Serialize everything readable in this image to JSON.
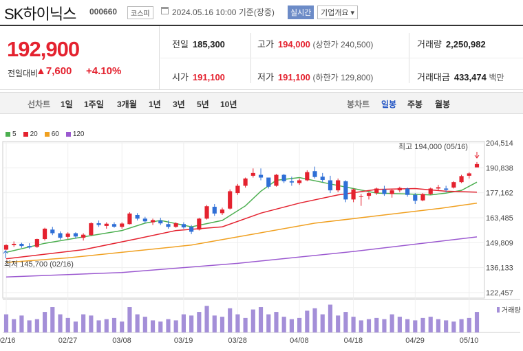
{
  "header": {
    "company": "SK하이닉스",
    "code": "000660",
    "market": "코스피",
    "datetime": "2024.05.16 10:00  기준(장중)",
    "realtime": "실시간",
    "overview": "기업개요 ▾"
  },
  "summary": {
    "price": "192,900",
    "change_label": "전일대비",
    "change": "▲7,600",
    "change_pct": "+4.10%",
    "prev_close_label": "전일",
    "prev_close": "185,300",
    "high_label": "고가",
    "high": "194,000",
    "upper_limit": "(상한가 240,500)",
    "volume_label": "거래량",
    "volume": "2,250,982",
    "open_label": "시가",
    "open": "191,100",
    "low_label": "저가",
    "low": "191,100",
    "lower_limit": "(하한가 129,800)",
    "amount_label": "거래대금",
    "amount": "433,474",
    "amount_unit": "백만"
  },
  "tabs": {
    "line_chart": "선차트",
    "d1": "1일",
    "w1": "1주일",
    "m3": "3개월",
    "y1": "1년",
    "y3": "3년",
    "y5": "5년",
    "y10": "10년",
    "candle_chart": "봉차트",
    "daily": "일봉",
    "weekly": "주봉",
    "monthly": "월봉"
  },
  "chart_data": {
    "type": "candlestick",
    "legend": [
      {
        "name": "5",
        "color": "#4caf50"
      },
      {
        "name": "20",
        "color": "#e4222f"
      },
      {
        "name": "60",
        "color": "#f0a020"
      },
      {
        "name": "120",
        "color": "#9b59d0"
      }
    ],
    "y_ticks": [
      "204,514",
      "190,838",
      "177,162",
      "163,485",
      "149,809",
      "136,133",
      "122,457"
    ],
    "x_ticks": [
      "02/16",
      "02/27",
      "03/08",
      "03/19",
      "03/28",
      "04/08",
      "04/18",
      "04/29",
      "05/10"
    ],
    "max_annotation": "최고 194,000 (05/16)",
    "min_annotation": "최저 145,700 (02/16)",
    "volume_label": "거래량",
    "ylim": [
      122457,
      204514
    ],
    "candles": [
      [
        146000,
        149000,
        145700,
        148500
      ],
      [
        148500,
        150500,
        147500,
        149200
      ],
      [
        149200,
        149800,
        147000,
        148000
      ],
      [
        148000,
        149500,
        146500,
        147200
      ],
      [
        147500,
        152000,
        147000,
        151800
      ],
      [
        151800,
        158000,
        151000,
        157500
      ],
      [
        157000,
        158500,
        154000,
        155000
      ],
      [
        155000,
        156000,
        151500,
        152500
      ],
      [
        153000,
        155500,
        151800,
        154800
      ],
      [
        155000,
        155500,
        152000,
        153200
      ],
      [
        152500,
        155000,
        151000,
        154200
      ],
      [
        154000,
        161000,
        153500,
        160500
      ],
      [
        160500,
        162000,
        158500,
        159500
      ],
      [
        159000,
        161000,
        157500,
        160200
      ],
      [
        160000,
        161000,
        158000,
        158600
      ],
      [
        158500,
        161000,
        157500,
        160300
      ],
      [
        160000,
        166500,
        159800,
        165800
      ],
      [
        165000,
        166000,
        162000,
        163000
      ],
      [
        163000,
        164000,
        160500,
        161500
      ],
      [
        161000,
        163000,
        159500,
        162200
      ],
      [
        162000,
        163500,
        159500,
        160400
      ],
      [
        160000,
        162000,
        157500,
        158500
      ],
      [
        158500,
        161000,
        158000,
        160500
      ],
      [
        160000,
        161000,
        157500,
        158200
      ],
      [
        158500,
        159500,
        154500,
        155800
      ],
      [
        157000,
        163500,
        156500,
        163000
      ],
      [
        163000,
        170500,
        162500,
        169800
      ],
      [
        169500,
        171000,
        164500,
        165800
      ],
      [
        166000,
        169000,
        165000,
        168000
      ],
      [
        168500,
        179000,
        168000,
        178000
      ],
      [
        177000,
        182000,
        176000,
        181000
      ],
      [
        181000,
        185500,
        180000,
        185000
      ],
      [
        186500,
        190500,
        185500,
        188000
      ],
      [
        187000,
        190500,
        184000,
        185500
      ],
      [
        185500,
        185000,
        179500,
        180500
      ],
      [
        181000,
        187500,
        180500,
        187000
      ],
      [
        187000,
        187500,
        182500,
        183500
      ],
      [
        183500,
        186000,
        181000,
        182800
      ],
      [
        182500,
        185000,
        181500,
        184000
      ],
      [
        184000,
        189500,
        183500,
        188500
      ],
      [
        189000,
        191500,
        185000,
        185800
      ],
      [
        186000,
        188000,
        183000,
        184200
      ],
      [
        184000,
        186500,
        177000,
        178500
      ],
      [
        178500,
        185000,
        177500,
        184000
      ],
      [
        183500,
        184000,
        172000,
        173500
      ],
      [
        173500,
        179500,
        172000,
        179000
      ],
      [
        175000,
        176500,
        170000,
        175200
      ],
      [
        175500,
        177500,
        173500,
        177000
      ],
      [
        177000,
        180000,
        176000,
        179500
      ],
      [
        179000,
        181000,
        175500,
        176500
      ],
      [
        176500,
        179500,
        174500,
        178500
      ],
      [
        178500,
        180500,
        177500,
        179800
      ],
      [
        179500,
        180000,
        175000,
        176000
      ],
      [
        176000,
        177000,
        171000,
        172800
      ],
      [
        173000,
        177000,
        172500,
        176500
      ],
      [
        176500,
        180000,
        176000,
        179500
      ],
      [
        179500,
        181500,
        178500,
        180200
      ],
      [
        179500,
        181000,
        177500,
        178800
      ],
      [
        180000,
        183500,
        179500,
        183000
      ],
      [
        183000,
        187000,
        182500,
        186300
      ],
      [
        186500,
        188500,
        185000,
        187800
      ],
      [
        191100,
        194000,
        191100,
        192900
      ]
    ],
    "ma5": [
      [
        0,
        144500
      ],
      [
        5,
        149500
      ],
      [
        10,
        153000
      ],
      [
        15,
        156500
      ],
      [
        18,
        160500
      ],
      [
        20,
        162000
      ],
      [
        24,
        158500
      ],
      [
        28,
        162000
      ],
      [
        31,
        170000
      ],
      [
        33,
        178000
      ],
      [
        35,
        184000
      ],
      [
        38,
        185500
      ],
      [
        42,
        182000
      ],
      [
        45,
        179500
      ],
      [
        48,
        177000
      ],
      [
        52,
        176500
      ],
      [
        55,
        176000
      ],
      [
        57,
        177000
      ],
      [
        59,
        178500
      ],
      [
        61,
        183000
      ]
    ],
    "ma20": [
      [
        0,
        141000
      ],
      [
        10,
        146000
      ],
      [
        17,
        152000
      ],
      [
        22,
        156500
      ],
      [
        28,
        158500
      ],
      [
        33,
        166000
      ],
      [
        38,
        171500
      ],
      [
        43,
        176000
      ],
      [
        48,
        179000
      ],
      [
        53,
        179500
      ],
      [
        57,
        178000
      ],
      [
        61,
        177500
      ]
    ],
    "ma60": [
      [
        0,
        139000
      ],
      [
        8,
        141500
      ],
      [
        16,
        145000
      ],
      [
        24,
        148500
      ],
      [
        32,
        154500
      ],
      [
        40,
        160500
      ],
      [
        48,
        164500
      ],
      [
        56,
        168500
      ],
      [
        61,
        171500
      ]
    ],
    "ma120": [
      [
        0,
        131000
      ],
      [
        15,
        133500
      ],
      [
        30,
        138500
      ],
      [
        45,
        145000
      ],
      [
        61,
        153000
      ]
    ],
    "volumes": [
      30,
      22,
      28,
      20,
      22,
      34,
      42,
      30,
      24,
      18,
      30,
      28,
      20,
      22,
      24,
      18,
      42,
      30,
      26,
      20,
      18,
      22,
      20,
      30,
      28,
      34,
      44,
      28,
      26,
      40,
      30,
      24,
      38,
      42,
      30,
      34,
      26,
      22,
      24,
      36,
      40,
      30,
      46,
      28,
      34,
      26,
      20,
      22,
      24,
      22,
      30,
      26,
      22,
      20,
      24,
      26,
      22,
      20,
      18,
      22,
      24,
      34
    ]
  }
}
